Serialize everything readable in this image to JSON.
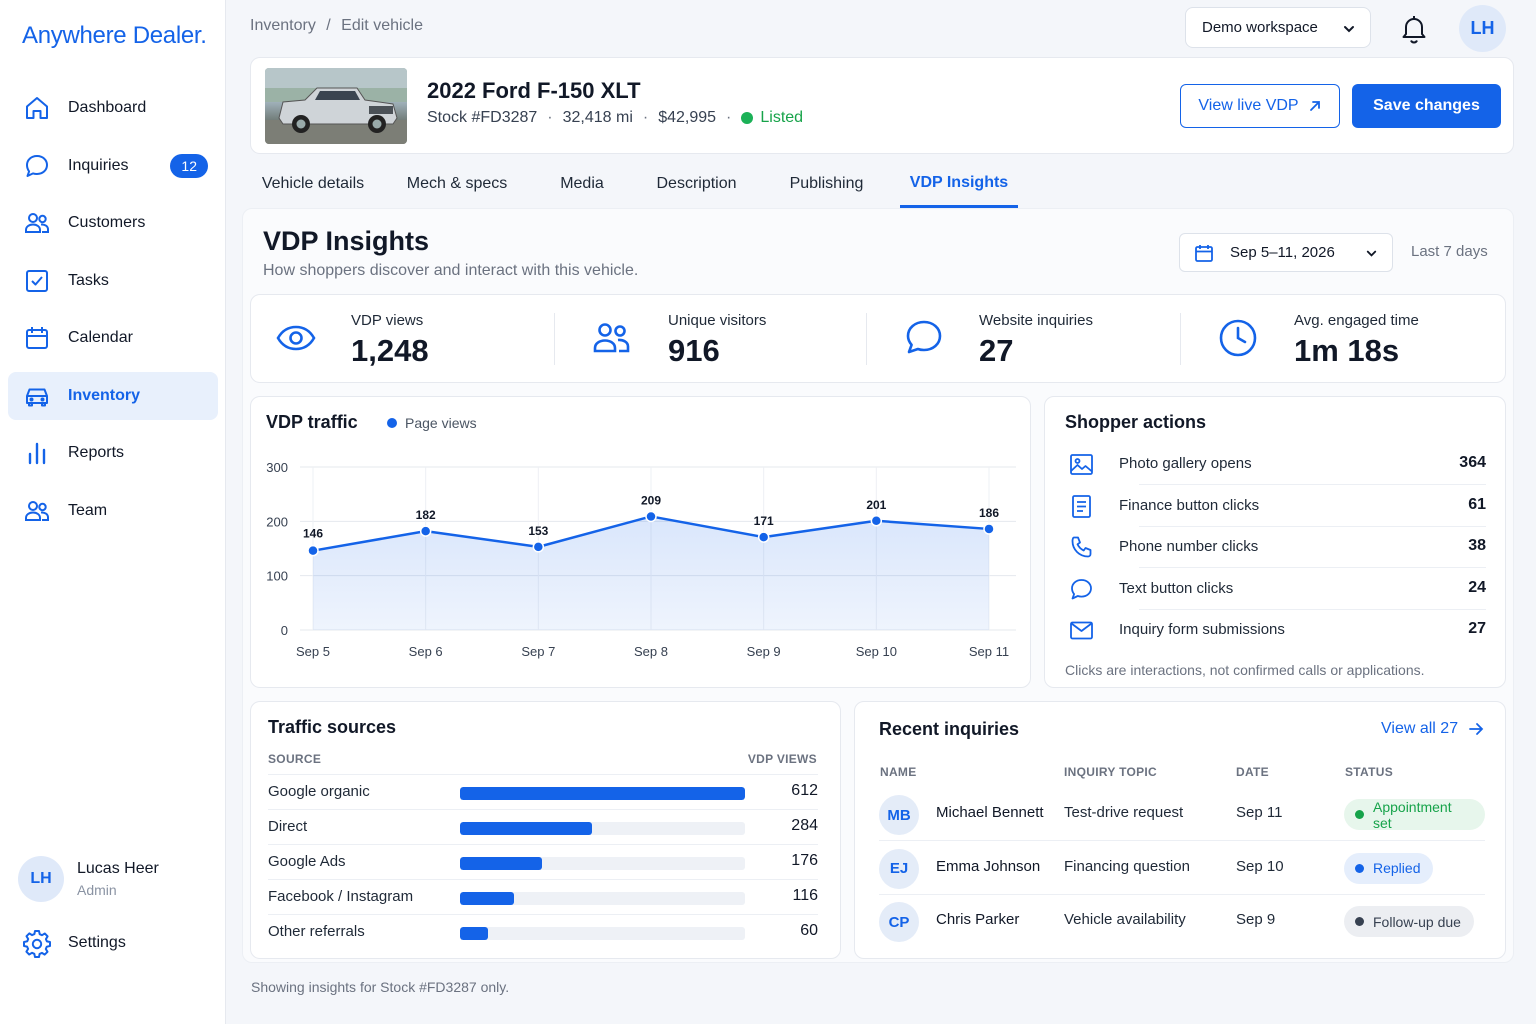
{
  "brand": {
    "logo_text": "Anywhere Dealer.",
    "accent": "#1463e8"
  },
  "sidebar": {
    "items": [
      {
        "label": "Dashboard",
        "icon": "home-icon"
      },
      {
        "label": "Inquiries",
        "icon": "chat-bubble-icon",
        "badge": "12"
      },
      {
        "label": "Customers",
        "icon": "users-icon"
      },
      {
        "label": "Tasks",
        "icon": "checkbox-icon"
      },
      {
        "label": "Calendar",
        "icon": "calendar-icon"
      },
      {
        "label": "Inventory",
        "icon": "car-icon",
        "active": true
      },
      {
        "label": "Reports",
        "icon": "bar-chart-icon"
      },
      {
        "label": "Team",
        "icon": "team-icon"
      }
    ],
    "user": {
      "initials": "LH",
      "name": "Lucas Heer",
      "role": "Admin"
    },
    "settings_label": "Settings"
  },
  "topbar": {
    "breadcrumb": [
      "Inventory",
      "Edit vehicle"
    ],
    "breadcrumb_sep": "/",
    "workspace": "Demo workspace",
    "avatar_initials": "LH"
  },
  "vehicle": {
    "title": "2022 Ford F-150 XLT",
    "stock": "Stock #FD3287",
    "mileage": "32,418 mi",
    "price": "$42,995",
    "status": "Listed",
    "status_color": "#1bb157",
    "view_live_label": "View live VDP",
    "save_label": "Save changes"
  },
  "tabs": [
    {
      "label": "Vehicle details"
    },
    {
      "label": "Mech & specs"
    },
    {
      "label": "Media"
    },
    {
      "label": "Description"
    },
    {
      "label": "Publishing"
    },
    {
      "label": "VDP Insights",
      "active": true
    }
  ],
  "insights": {
    "title": "VDP Insights",
    "subtitle": "How shoppers discover and interact with this vehicle.",
    "date_range": "Sep 5–11, 2026",
    "date_hint": "Last 7 days"
  },
  "kpis": [
    {
      "label": "VDP views",
      "value": "1,248",
      "icon": "eye-icon"
    },
    {
      "label": "Unique visitors",
      "value": "916",
      "icon": "users-icon"
    },
    {
      "label": "Website inquiries",
      "value": "27",
      "icon": "chat-bubble-icon"
    },
    {
      "label": "Avg. engaged time",
      "value": "1m 18s",
      "icon": "clock-icon"
    }
  ],
  "chart_data": {
    "type": "area",
    "title": "VDP traffic",
    "categories": [
      "Sep 5",
      "Sep 6",
      "Sep 7",
      "Sep 8",
      "Sep 9",
      "Sep 10",
      "Sep 11"
    ],
    "series": [
      {
        "name": "Page views",
        "values": [
          146,
          182,
          153,
          209,
          171,
          201,
          186
        ],
        "color": "#1463e8"
      }
    ],
    "ylim": [
      0,
      300
    ],
    "yticks": [
      0,
      100,
      200,
      300
    ],
    "grid": true,
    "legend_position": "top-left",
    "data_labels": true
  },
  "shopper_actions": {
    "title": "Shopper actions",
    "items": [
      {
        "label": "Photo gallery opens",
        "value": "364",
        "icon": "image-icon"
      },
      {
        "label": "Finance button clicks",
        "value": "61",
        "icon": "document-icon"
      },
      {
        "label": "Phone number clicks",
        "value": "38",
        "icon": "phone-icon"
      },
      {
        "label": "Text button clicks",
        "value": "24",
        "icon": "chat-bubble-icon"
      },
      {
        "label": "Inquiry form submissions",
        "value": "27",
        "icon": "mail-icon"
      }
    ],
    "note": "Clicks are interactions, not confirmed calls or applications."
  },
  "traffic_sources": {
    "title": "Traffic sources",
    "col_source": "SOURCE",
    "col_views": "VDP VIEWS",
    "max": 612,
    "rows": [
      {
        "source": "Google organic",
        "views": 612
      },
      {
        "source": "Direct",
        "views": 284
      },
      {
        "source": "Google Ads",
        "views": 176
      },
      {
        "source": "Facebook / Instagram",
        "views": 116
      },
      {
        "source": "Other referrals",
        "views": 60
      }
    ]
  },
  "recent_inquiries": {
    "title": "Recent inquiries",
    "view_all_label": "View all 27",
    "columns": [
      "NAME",
      "INQUIRY TOPIC",
      "DATE",
      "STATUS"
    ],
    "rows": [
      {
        "initials": "MB",
        "name": "Michael Bennett",
        "topic": "Test-drive request",
        "date": "Sep 11",
        "status": "Appointment set",
        "status_color": "#16a34a",
        "status_bg": "#e7f6ec"
      },
      {
        "initials": "EJ",
        "name": "Emma Johnson",
        "topic": "Financing question",
        "date": "Sep 10",
        "status": "Replied",
        "status_color": "#1463e8",
        "status_bg": "#e5eefc"
      },
      {
        "initials": "CP",
        "name": "Chris Parker",
        "topic": "Vehicle availability",
        "date": "Sep 9",
        "status": "Follow-up due",
        "status_color": "#374151",
        "status_bg": "#eceef2"
      }
    ]
  },
  "footer_note": "Showing insights for Stock #FD3287 only."
}
